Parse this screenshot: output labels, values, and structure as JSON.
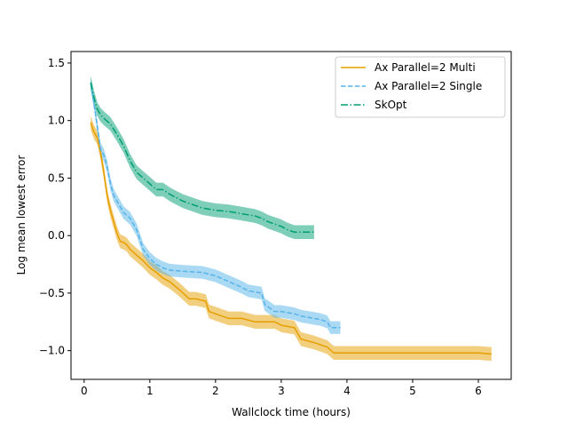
{
  "chart_data": {
    "type": "line",
    "title": "",
    "xlabel": "Wallclock time (hours)",
    "ylabel": "Log mean lowest error",
    "xlim": [
      -0.2,
      6.5
    ],
    "ylim": [
      -1.25,
      1.6
    ],
    "x_ticks": [
      0,
      1,
      2,
      3,
      4,
      5,
      6
    ],
    "x_tick_labels": [
      "0",
      "1",
      "2",
      "3",
      "4",
      "5",
      "6"
    ],
    "y_ticks": [
      -1.0,
      -0.5,
      0.0,
      0.5,
      1.0,
      1.5
    ],
    "y_tick_labels": [
      "−1.0",
      "−0.5",
      "0.0",
      "0.5",
      "1.0",
      "1.5"
    ],
    "grid": false,
    "legend_position": "upper right",
    "series": [
      {
        "name": "Ax Parallel=2 Multi",
        "color": "#e69f00",
        "line_style": "solid",
        "band_half_width": 0.06,
        "x": [
          0.1,
          0.15,
          0.2,
          0.25,
          0.3,
          0.35,
          0.4,
          0.45,
          0.5,
          0.55,
          0.6,
          0.65,
          0.7,
          0.8,
          0.9,
          1.0,
          1.1,
          1.2,
          1.3,
          1.45,
          1.6,
          1.7,
          1.85,
          1.9,
          2.0,
          2.1,
          2.2,
          2.4,
          2.6,
          2.9,
          3.0,
          3.2,
          3.3,
          3.5,
          3.7,
          3.8,
          4.0,
          4.5,
          5.0,
          5.5,
          6.0,
          6.2
        ],
        "y": [
          0.98,
          0.9,
          0.85,
          0.72,
          0.55,
          0.35,
          0.22,
          0.12,
          0.02,
          -0.05,
          -0.06,
          -0.08,
          -0.12,
          -0.17,
          -0.22,
          -0.28,
          -0.32,
          -0.37,
          -0.4,
          -0.47,
          -0.55,
          -0.55,
          -0.57,
          -0.66,
          -0.68,
          -0.7,
          -0.72,
          -0.72,
          -0.75,
          -0.75,
          -0.78,
          -0.8,
          -0.9,
          -0.93,
          -0.97,
          -1.02,
          -1.02,
          -1.02,
          -1.02,
          -1.02,
          -1.02,
          -1.03
        ]
      },
      {
        "name": "Ax Parallel=2 Single",
        "color": "#56b4e9",
        "line_style": "dashed",
        "band_half_width": 0.055,
        "x": [
          0.1,
          0.15,
          0.2,
          0.25,
          0.3,
          0.35,
          0.4,
          0.45,
          0.5,
          0.55,
          0.6,
          0.7,
          0.8,
          0.9,
          1.0,
          1.1,
          1.2,
          1.3,
          1.5,
          1.8,
          2.0,
          2.2,
          2.4,
          2.5,
          2.7,
          2.75,
          2.9,
          3.0,
          3.2,
          3.3,
          3.5,
          3.6,
          3.7,
          3.75,
          3.9
        ],
        "y": [
          1.32,
          1.15,
          0.95,
          0.75,
          0.7,
          0.6,
          0.45,
          0.35,
          0.3,
          0.25,
          0.2,
          0.15,
          0.05,
          -0.12,
          -0.2,
          -0.25,
          -0.28,
          -0.3,
          -0.31,
          -0.32,
          -0.35,
          -0.4,
          -0.45,
          -0.48,
          -0.5,
          -0.6,
          -0.66,
          -0.66,
          -0.68,
          -0.7,
          -0.72,
          -0.73,
          -0.75,
          -0.8,
          -0.8
        ]
      },
      {
        "name": "SkOpt",
        "color": "#009e73",
        "line_style": "dashdot",
        "band_half_width": 0.06,
        "x": [
          0.1,
          0.15,
          0.2,
          0.25,
          0.3,
          0.4,
          0.5,
          0.6,
          0.7,
          0.8,
          0.9,
          1.0,
          1.1,
          1.2,
          1.3,
          1.4,
          1.5,
          1.6,
          1.7,
          1.8,
          1.9,
          2.0,
          2.2,
          2.4,
          2.6,
          2.7,
          2.8,
          2.9,
          3.0,
          3.1,
          3.2,
          3.5
        ],
        "y": [
          1.33,
          1.2,
          1.1,
          1.05,
          1.02,
          0.97,
          0.88,
          0.78,
          0.65,
          0.55,
          0.5,
          0.45,
          0.4,
          0.4,
          0.36,
          0.33,
          0.3,
          0.28,
          0.26,
          0.24,
          0.23,
          0.22,
          0.21,
          0.19,
          0.17,
          0.15,
          0.12,
          0.1,
          0.08,
          0.05,
          0.03,
          0.03
        ]
      }
    ]
  }
}
